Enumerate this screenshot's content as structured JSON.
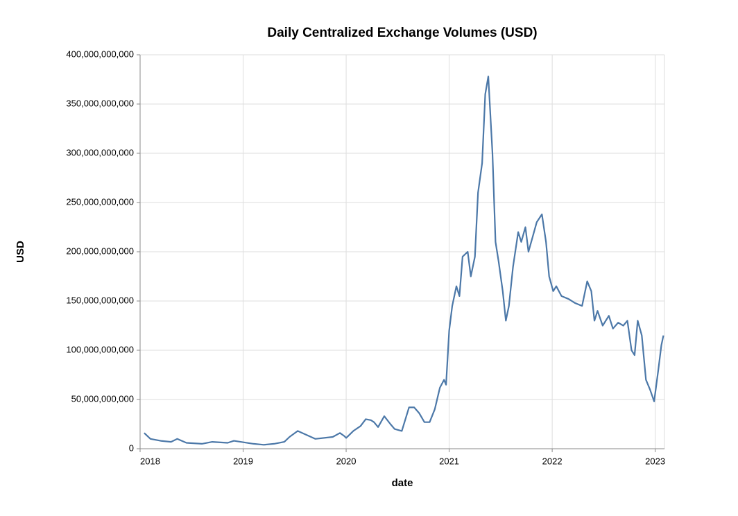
{
  "chart_data": {
    "type": "line",
    "title": "Daily Centralized Exchange Volumes (USD)",
    "x_label": "date",
    "y_label": "USD",
    "grid": true,
    "xlim": [
      2018,
      2023.09
    ],
    "xticks": [
      2018,
      2019,
      2020,
      2021,
      2022,
      2023
    ],
    "ylim": [
      0,
      400000000000
    ],
    "yticks": [
      0,
      {
        "value": 50000000000,
        "label": "50,000,000,000"
      },
      {
        "value": 100000000000,
        "label": "100,000,000,000"
      },
      {
        "value": 150000000000,
        "label": "150,000,000,000"
      },
      {
        "value": 200000000000,
        "label": "200,000,000,000"
      },
      {
        "value": 250000000000,
        "label": "250,000,000,000"
      },
      {
        "value": 300000000000,
        "label": "300,000,000,000"
      },
      {
        "value": 350000000000,
        "label": "350,000,000,000"
      },
      {
        "value": 400000000000,
        "label": "400,000,000,000"
      }
    ],
    "x": [
      2018.04,
      2018.1,
      2018.2,
      2018.3,
      2018.36,
      2018.45,
      2018.6,
      2018.7,
      2018.85,
      2018.91,
      2019.1,
      2019.2,
      2019.3,
      2019.4,
      2019.45,
      2019.53,
      2019.7,
      2019.87,
      2019.94,
      2019.98,
      2020.0,
      2020.07,
      2020.14,
      2020.19,
      2020.24,
      2020.27,
      2020.31,
      2020.37,
      2020.43,
      2020.47,
      2020.54,
      2020.61,
      2020.66,
      2020.71,
      2020.76,
      2020.81,
      2020.86,
      2020.91,
      2020.95,
      2020.97,
      2021.0,
      2021.03,
      2021.07,
      2021.1,
      2021.13,
      2021.18,
      2021.21,
      2021.25,
      2021.28,
      2021.32,
      2021.35,
      2021.38,
      2021.42,
      2021.45,
      2021.48,
      2021.52,
      2021.55,
      2021.58,
      2021.62,
      2021.67,
      2021.7,
      2021.74,
      2021.77,
      2021.81,
      2021.85,
      2021.9,
      2021.94,
      2021.97,
      2022.01,
      2022.04,
      2022.09,
      2022.16,
      2022.22,
      2022.29,
      2022.34,
      2022.38,
      2022.41,
      2022.44,
      2022.49,
      2022.55,
      2022.59,
      2022.64,
      2022.69,
      2022.73,
      2022.77,
      2022.8,
      2022.83,
      2022.87,
      2022.91,
      2022.95,
      2022.99,
      2023.03,
      2023.06,
      2023.08
    ],
    "series": [
      {
        "name": "USD",
        "color": "#4c78a8",
        "values": [
          16000000000,
          10000000000,
          8000000000,
          7000000000,
          10000000000,
          6000000000,
          5000000000,
          7000000000,
          6000000000,
          8000000000,
          5000000000,
          4000000000,
          5000000000,
          7000000000,
          12000000000,
          18000000000,
          10000000000,
          12000000000,
          16000000000,
          13000000000,
          11000000000,
          18000000000,
          23000000000,
          30000000000,
          29000000000,
          27000000000,
          22000000000,
          33000000000,
          25000000000,
          20000000000,
          18000000000,
          42000000000,
          42000000000,
          36000000000,
          27000000000,
          27000000000,
          40000000000,
          62000000000,
          70000000000,
          65000000000,
          120000000000,
          145000000000,
          165000000000,
          155000000000,
          195000000000,
          200000000000,
          175000000000,
          195000000000,
          260000000000,
          290000000000,
          360000000000,
          378000000000,
          300000000000,
          210000000000,
          190000000000,
          160000000000,
          130000000000,
          145000000000,
          185000000000,
          220000000000,
          210000000000,
          225000000000,
          200000000000,
          215000000000,
          230000000000,
          238000000000,
          210000000000,
          175000000000,
          160000000000,
          165000000000,
          155000000000,
          152000000000,
          148000000000,
          145000000000,
          170000000000,
          160000000000,
          130000000000,
          140000000000,
          125000000000,
          135000000000,
          122000000000,
          128000000000,
          125000000000,
          130000000000,
          100000000000,
          95000000000,
          130000000000,
          115000000000,
          70000000000,
          60000000000,
          48000000000,
          80000000000,
          105000000000,
          115000000000
        ]
      }
    ]
  }
}
